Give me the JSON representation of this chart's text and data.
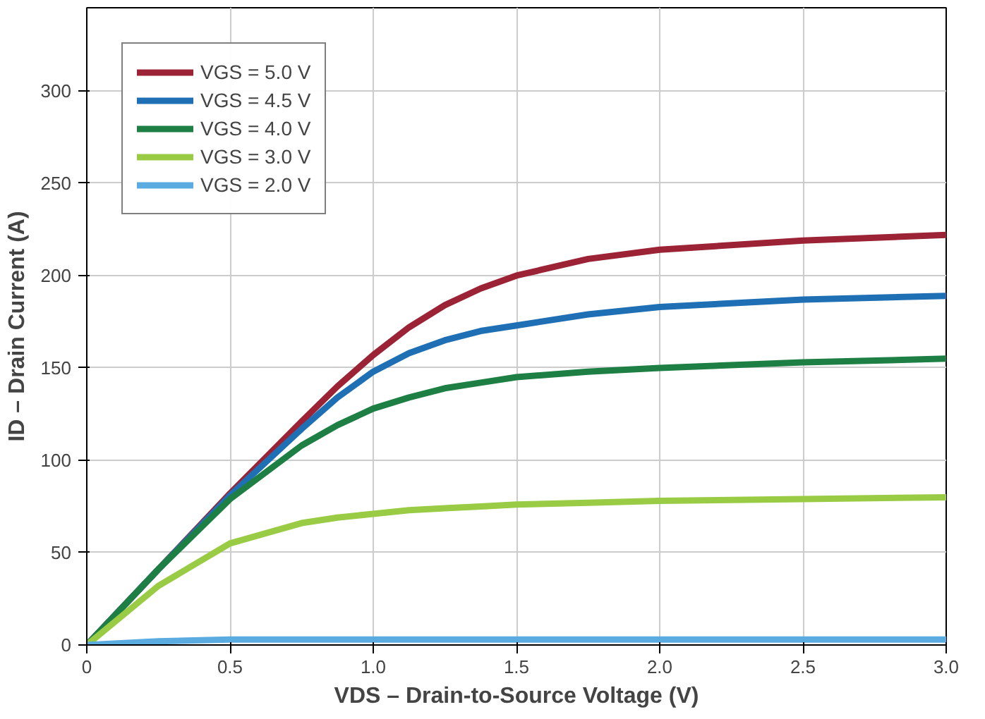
{
  "chart_data": {
    "type": "line",
    "xlabel": "VDS – Drain-to-Source Voltage (V)",
    "ylabel": "ID – Drain Current (A)",
    "x": [
      0,
      0.25,
      0.5,
      0.75,
      0.875,
      1.0,
      1.125,
      1.25,
      1.375,
      1.5,
      1.75,
      2.0,
      2.5,
      3.0
    ],
    "series": [
      {
        "name": "VGS = 5.0 V",
        "color": "#9b2335",
        "values": [
          0,
          41,
          82,
          121,
          140,
          157,
          172,
          184,
          193,
          200,
          209,
          214,
          219,
          222
        ]
      },
      {
        "name": "VGS = 4.5 V",
        "color": "#1f6fb5",
        "values": [
          0,
          41,
          81,
          117,
          134,
          148,
          158,
          165,
          170,
          173,
          179,
          183,
          187,
          189
        ]
      },
      {
        "name": "VGS = 4.0 V",
        "color": "#1e7f45",
        "values": [
          0,
          41,
          79,
          108,
          119,
          128,
          134,
          139,
          142,
          145,
          148,
          150,
          153,
          155
        ]
      },
      {
        "name": "VGS = 3.0 V",
        "color": "#99cc44",
        "values": [
          0,
          32,
          55,
          66,
          69,
          71,
          73,
          74,
          75,
          76,
          77,
          78,
          79,
          80
        ]
      },
      {
        "name": "VGS = 2.0 V",
        "color": "#5aabe0",
        "values": [
          0,
          2,
          3,
          3,
          3,
          3,
          3,
          3,
          3,
          3,
          3,
          3,
          3,
          3
        ]
      }
    ],
    "xlim": [
      0,
      3.0
    ],
    "xticks": [
      0,
      0.5,
      {
        "value": 1,
        "label": "1.0"
      },
      1.5,
      {
        "value": 2,
        "label": "2.0"
      },
      2.5,
      {
        "value": 3,
        "label": "3.0"
      }
    ],
    "ylim": [
      0,
      345
    ],
    "yticks": [
      0,
      50,
      100,
      150,
      200,
      250,
      300
    ],
    "grid": true,
    "legend": "top left",
    "line_style": "solid",
    "marker": "none"
  }
}
